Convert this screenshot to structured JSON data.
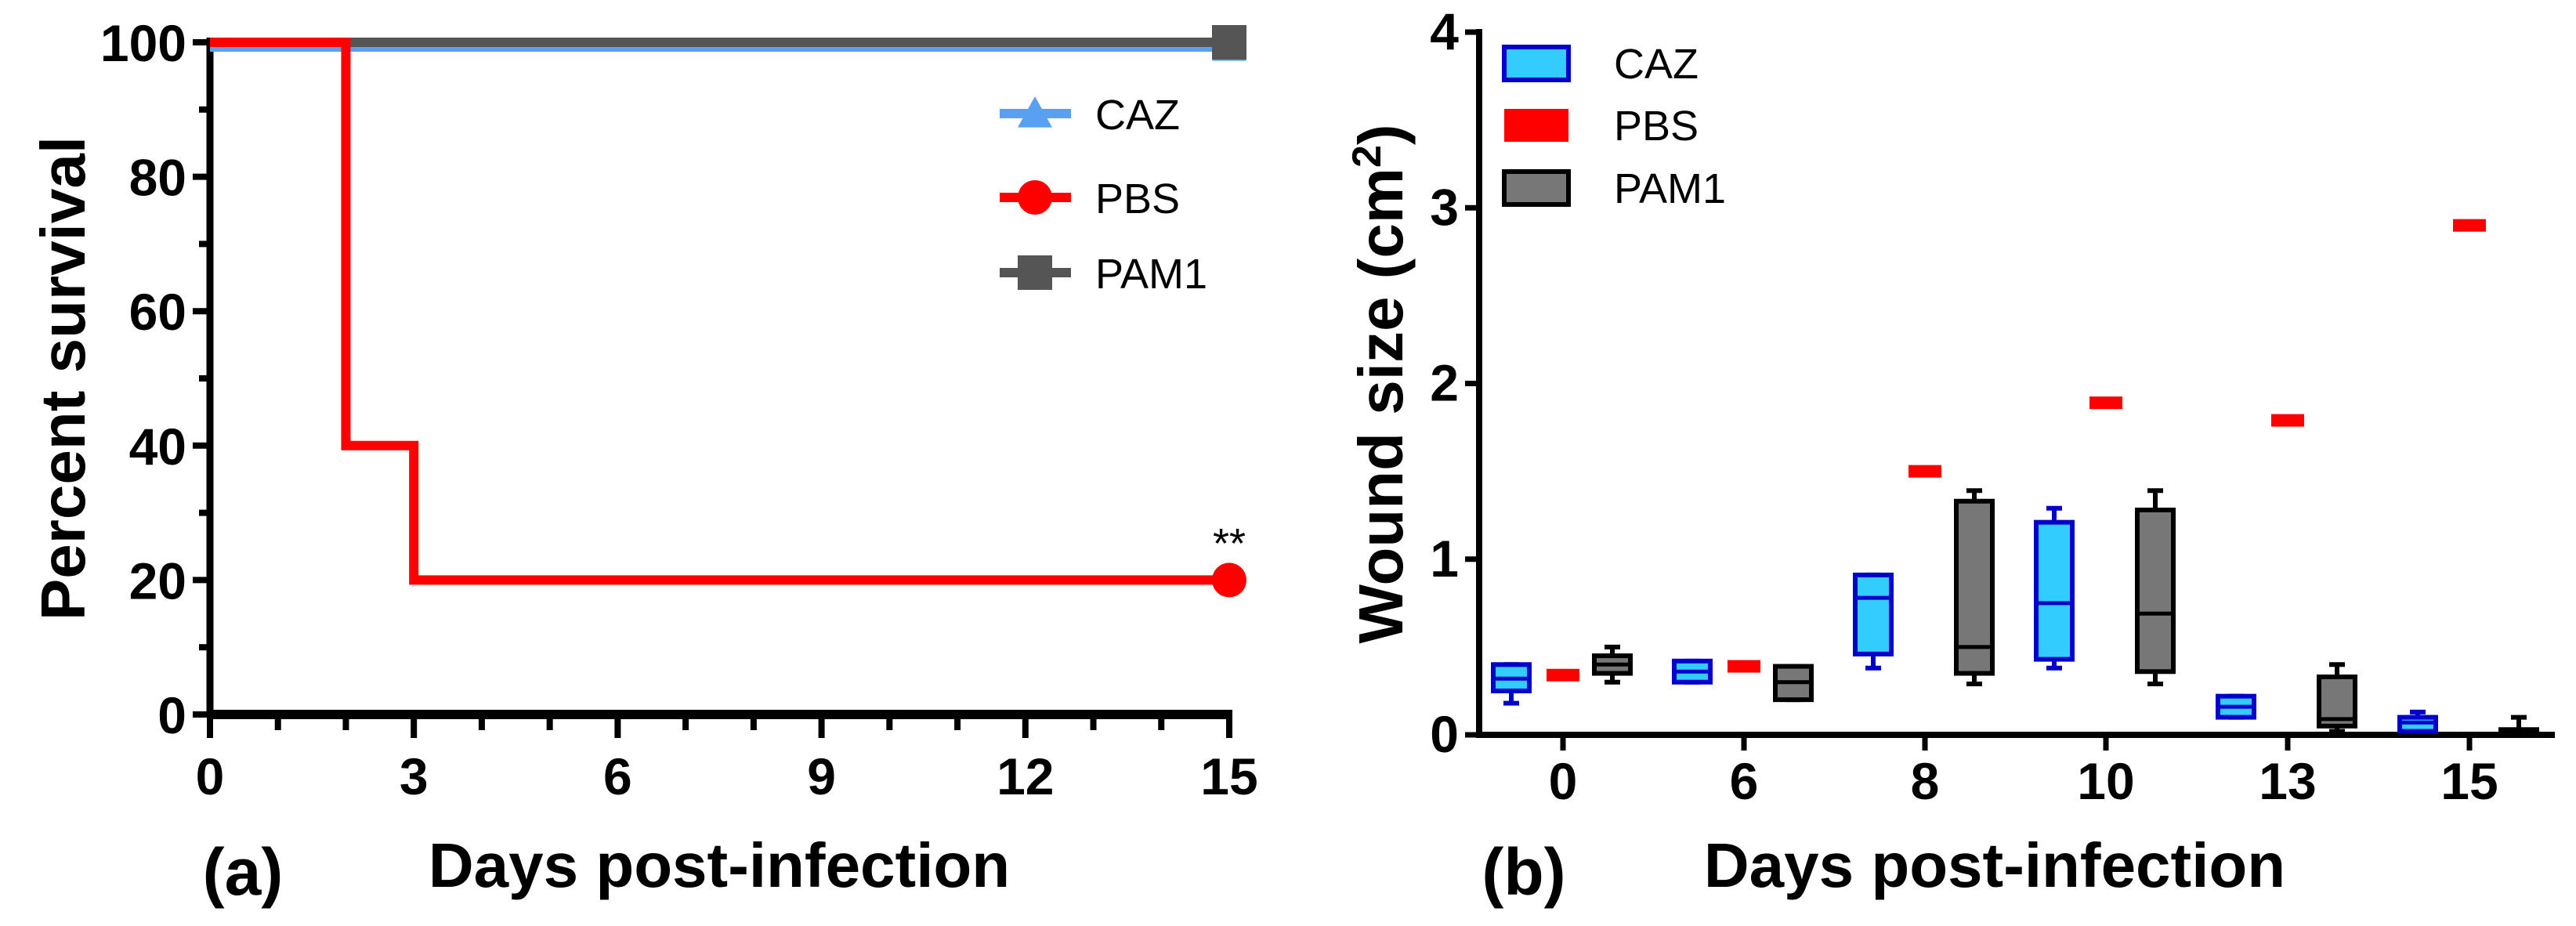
{
  "chart_data": [
    {
      "type": "line",
      "panel_label": "(a)",
      "xlabel": "Days post-infection",
      "ylabel": "Percent survival",
      "xlim": [
        0,
        15
      ],
      "ylim": [
        0,
        100
      ],
      "xticks": [
        "0",
        "3",
        "6",
        "9",
        "12",
        "15"
      ],
      "yticks": [
        "0",
        "20",
        "40",
        "60",
        "80",
        "100"
      ],
      "grid": false,
      "legend_position": "top-right",
      "annotation": "**",
      "series": [
        {
          "name": "CAZ",
          "color": "#5aa0f0",
          "marker": "triangle",
          "x": [
            0,
            15
          ],
          "y": [
            100,
            100
          ]
        },
        {
          "name": "PBS",
          "color": "#ff0000",
          "marker": "circle",
          "x": [
            0,
            2,
            2,
            3,
            3,
            15
          ],
          "y": [
            100,
            100,
            40,
            40,
            20,
            20
          ]
        },
        {
          "name": "PAM1",
          "color": "#555555",
          "marker": "square",
          "x": [
            0,
            15
          ],
          "y": [
            100,
            100
          ]
        }
      ]
    },
    {
      "type": "box",
      "panel_label": "(b)",
      "xlabel": "Days post-infection",
      "ylabel": "Wound size (cm",
      "ylabel_sup": "2",
      "ylabel_close": ")",
      "ylim": [
        0,
        4
      ],
      "yticks": [
        "0",
        "1",
        "2",
        "3",
        "4"
      ],
      "categories": [
        "0",
        "6",
        "8",
        "10",
        "13",
        "15"
      ],
      "grid": false,
      "legend_position": "top-left",
      "series": [
        {
          "name": "CAZ",
          "fill": "#33ccff",
          "stroke": "#0000cc",
          "boxes": [
            {
              "min": 0.18,
              "q1": 0.25,
              "median": 0.32,
              "q3": 0.4,
              "max": 0.4
            },
            {
              "min": 0.3,
              "q1": 0.3,
              "median": 0.36,
              "q3": 0.42,
              "max": 0.42
            },
            {
              "min": 0.38,
              "q1": 0.46,
              "median": 0.78,
              "q3": 0.91,
              "max": 0.91
            },
            {
              "min": 0.38,
              "q1": 0.43,
              "median": 0.75,
              "q3": 1.21,
              "max": 1.29
            },
            {
              "min": 0.1,
              "q1": 0.1,
              "median": 0.16,
              "q3": 0.22,
              "max": 0.22
            },
            {
              "min": 0.02,
              "q1": 0.02,
              "median": 0.07,
              "q3": 0.1,
              "max": 0.13
            }
          ]
        },
        {
          "name": "PBS",
          "fill": "#ff0000",
          "stroke": "#ff0000",
          "values": [
            0.34,
            0.39,
            1.5,
            1.89,
            1.79,
            2.9
          ]
        },
        {
          "name": "PAM1",
          "fill": "#777777",
          "stroke": "#000000",
          "boxes": [
            {
              "min": 0.3,
              "q1": 0.35,
              "median": 0.4,
              "q3": 0.45,
              "max": 0.5
            },
            {
              "min": 0.2,
              "q1": 0.2,
              "median": 0.3,
              "q3": 0.39,
              "max": 0.39
            },
            {
              "min": 0.29,
              "q1": 0.35,
              "median": 0.5,
              "q3": 1.33,
              "max": 1.39
            },
            {
              "min": 0.29,
              "q1": 0.36,
              "median": 0.69,
              "q3": 1.28,
              "max": 1.39
            },
            {
              "min": 0.02,
              "q1": 0.05,
              "median": 0.09,
              "q3": 0.33,
              "max": 0.4
            },
            {
              "min": 0.0,
              "q1": 0.0,
              "median": 0.01,
              "q3": 0.03,
              "max": 0.1
            }
          ]
        }
      ]
    }
  ]
}
